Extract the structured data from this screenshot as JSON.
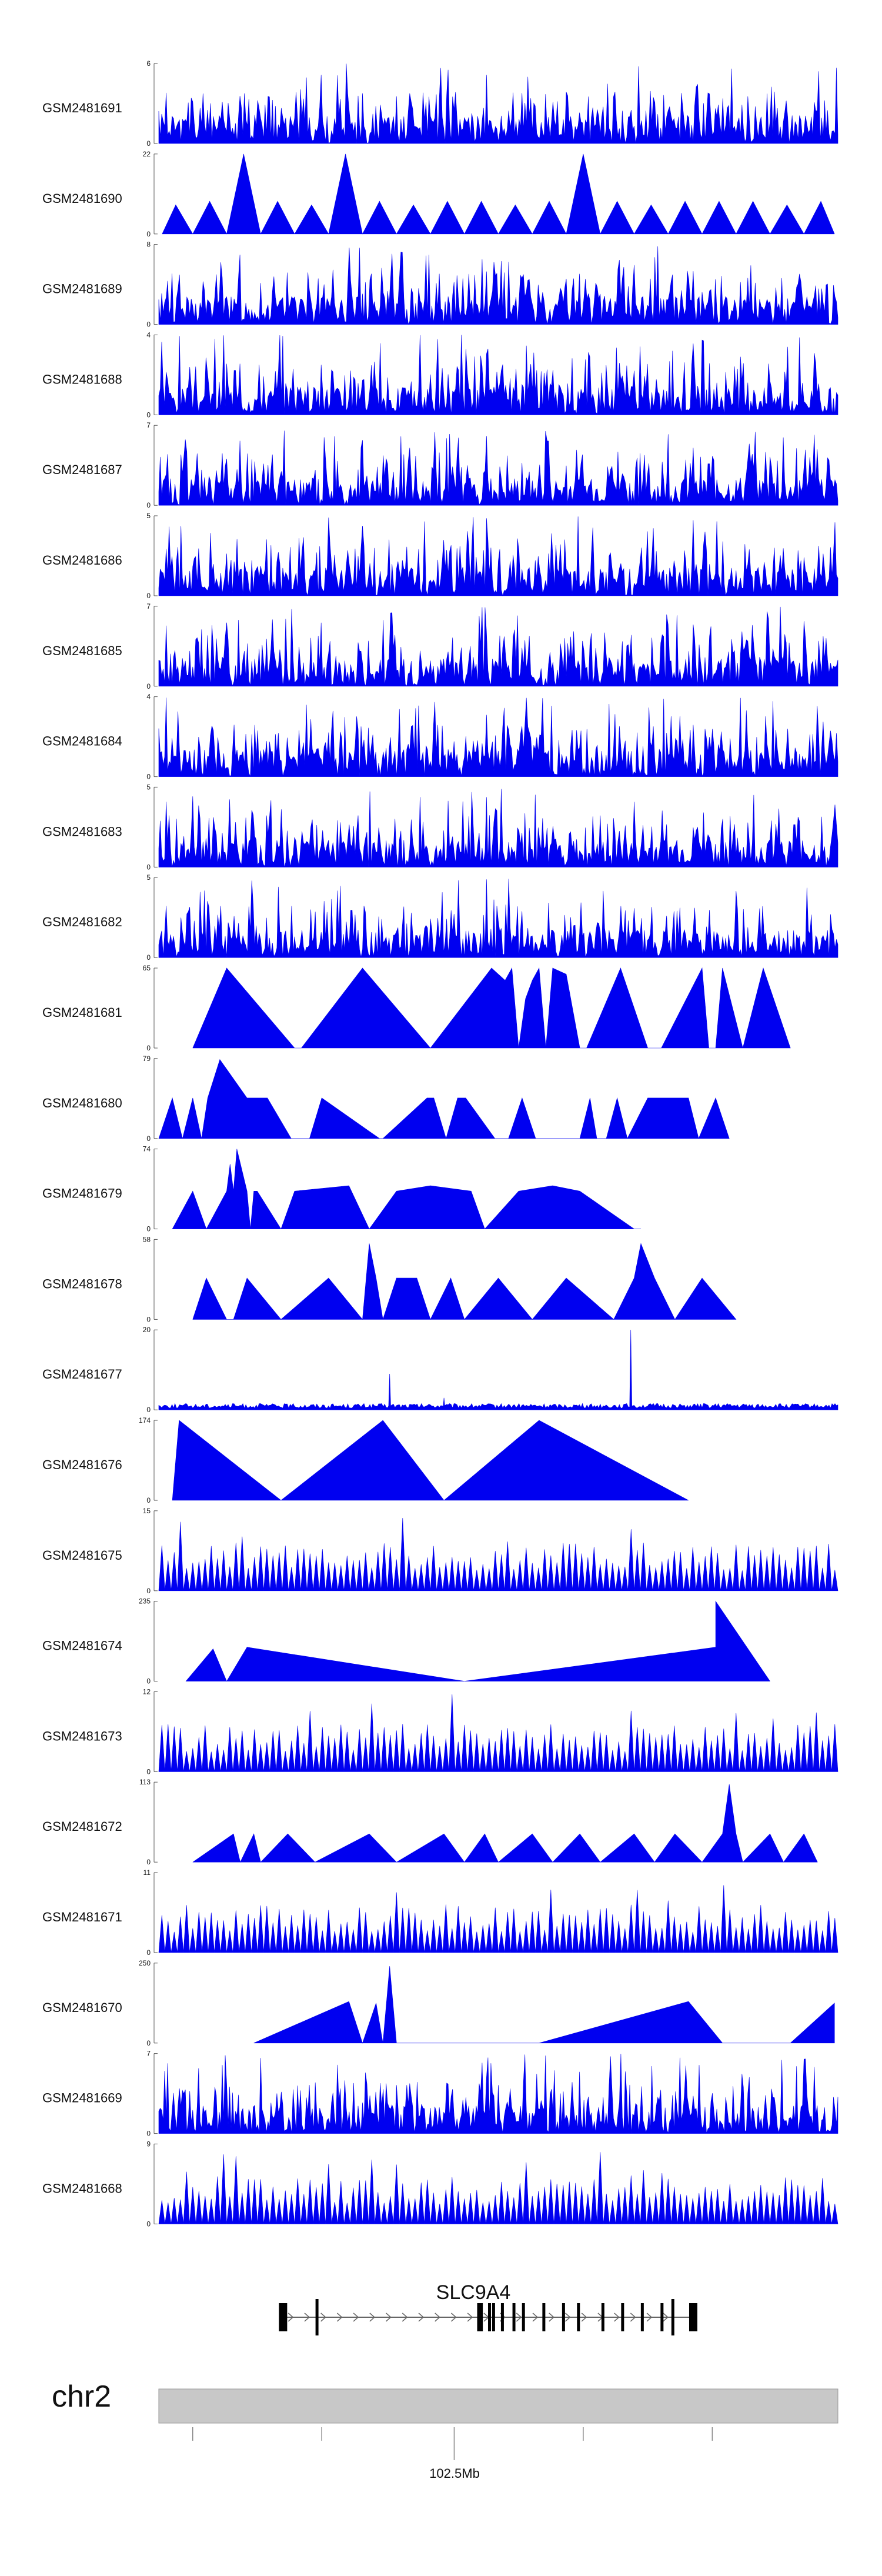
{
  "chart_data": {
    "type": "area",
    "colors": {
      "signal": "#0000f0",
      "ideogram": "#c8c8c8",
      "gene": "#000000",
      "intron": "#666666"
    },
    "tracks": [
      {
        "name": "GSM2481691",
        "ymin": 0,
        "ymax": 6,
        "style": "spiky",
        "seed": 11
      },
      {
        "name": "GSM2481690",
        "ymin": 0,
        "ymax": 22,
        "style": "regular",
        "seed": 12,
        "xvals": [
          0.005,
          0.025,
          0.05,
          0.075,
          0.1,
          0.125,
          0.15,
          0.175,
          0.2,
          0.225,
          0.25,
          0.275,
          0.3,
          0.325,
          0.35,
          0.375,
          0.4,
          0.425,
          0.45,
          0.475,
          0.5,
          0.525,
          0.55,
          0.575,
          0.6,
          0.625,
          0.65,
          0.675,
          0.7,
          0.725,
          0.75,
          0.775,
          0.8,
          0.825,
          0.85,
          0.875,
          0.9,
          0.925,
          0.95,
          0.975,
          0.995
        ],
        "yvals": [
          0,
          8,
          0,
          9,
          0,
          22,
          0,
          9,
          0,
          8,
          0,
          22,
          0,
          9,
          0,
          8,
          0,
          9,
          0,
          9,
          0,
          8,
          0,
          9,
          0,
          22,
          0,
          9,
          0,
          8,
          0,
          9,
          0,
          9,
          0,
          9,
          0,
          8,
          0,
          9,
          0
        ]
      },
      {
        "name": "GSM2481689",
        "ymin": 0,
        "ymax": 8,
        "style": "spiky",
        "seed": 13
      },
      {
        "name": "GSM2481688",
        "ymin": 0,
        "ymax": 4,
        "style": "spiky",
        "seed": 14
      },
      {
        "name": "GSM2481687",
        "ymin": 0,
        "ymax": 7,
        "style": "spiky",
        "seed": 15
      },
      {
        "name": "GSM2481686",
        "ymin": 0,
        "ymax": 5,
        "style": "spiky",
        "seed": 16
      },
      {
        "name": "GSM2481685",
        "ymin": 0,
        "ymax": 7,
        "style": "spiky",
        "seed": 17
      },
      {
        "name": "GSM2481684",
        "ymin": 0,
        "ymax": 4,
        "style": "spiky",
        "seed": 18
      },
      {
        "name": "GSM2481683",
        "ymin": 0,
        "ymax": 5,
        "style": "spiky",
        "seed": 19
      },
      {
        "name": "GSM2481682",
        "ymin": 0,
        "ymax": 5,
        "style": "spiky",
        "seed": 20
      },
      {
        "name": "GSM2481681",
        "ymin": 0,
        "ymax": 65,
        "style": "polyline",
        "seed": 21,
        "xvals": [
          0.05,
          0.1,
          0.2,
          0.21,
          0.3,
          0.4,
          0.49,
          0.5,
          0.51,
          0.52,
          0.53,
          0.54,
          0.55,
          0.56,
          0.57,
          0.58,
          0.6,
          0.62,
          0.63,
          0.68,
          0.72,
          0.74,
          0.8,
          0.81,
          0.82,
          0.83,
          0.86,
          0.89,
          0.93
        ],
        "yvals": [
          0,
          65,
          0,
          0,
          65,
          0,
          65,
          60,
          55,
          65,
          0,
          40,
          55,
          65,
          0,
          65,
          60,
          0,
          0,
          65,
          0,
          0,
          65,
          0,
          0,
          65,
          0,
          65,
          0
        ]
      },
      {
        "name": "GSM2481680",
        "ymin": 0,
        "ymax": 79,
        "style": "polyline",
        "seed": 22,
        "xvals": [
          0,
          0.02,
          0.035,
          0.05,
          0.063,
          0.072,
          0.09,
          0.13,
          0.16,
          0.195,
          0.222,
          0.24,
          0.325,
          0.33,
          0.395,
          0.405,
          0.423,
          0.44,
          0.452,
          0.495,
          0.515,
          0.535,
          0.555,
          0.62,
          0.635,
          0.645,
          0.659,
          0.675,
          0.69,
          0.72,
          0.745,
          0.755,
          0.78,
          0.795,
          0.82,
          0.84
        ],
        "yvals": [
          0,
          40,
          0,
          40,
          0,
          40,
          78,
          40,
          40,
          0,
          0,
          40,
          0,
          0,
          40,
          40,
          0,
          40,
          40,
          0,
          0,
          40,
          0,
          0,
          40,
          0,
          0,
          40,
          0,
          40,
          40,
          40,
          40,
          0,
          40,
          0
        ]
      },
      {
        "name": "GSM2481679",
        "ymin": 0,
        "ymax": 74,
        "style": "polyline",
        "seed": 23,
        "xvals": [
          0.02,
          0.05,
          0.07,
          0.1,
          0.105,
          0.11,
          0.115,
          0.13,
          0.135,
          0.14,
          0.145,
          0.18,
          0.2,
          0.28,
          0.31,
          0.35,
          0.4,
          0.46,
          0.48,
          0.53,
          0.58,
          0.62,
          0.7,
          0.71
        ],
        "yvals": [
          0,
          35,
          0,
          35,
          60,
          35,
          74,
          35,
          0,
          35,
          35,
          0,
          35,
          40,
          0,
          35,
          40,
          35,
          0,
          35,
          40,
          35,
          0,
          0
        ]
      },
      {
        "name": "GSM2481678",
        "ymin": 0,
        "ymax": 58,
        "style": "polyline",
        "seed": 24,
        "xvals": [
          0.05,
          0.07,
          0.1,
          0.11,
          0.13,
          0.18,
          0.25,
          0.3,
          0.31,
          0.32,
          0.33,
          0.35,
          0.38,
          0.4,
          0.43,
          0.45,
          0.5,
          0.55,
          0.6,
          0.67,
          0.7,
          0.71,
          0.73,
          0.76,
          0.8,
          0.85
        ],
        "yvals": [
          0,
          30,
          0,
          0,
          30,
          0,
          30,
          0,
          55,
          30,
          0,
          30,
          30,
          0,
          30,
          0,
          30,
          0,
          30,
          0,
          30,
          55,
          30,
          0,
          30,
          0
        ]
      },
      {
        "name": "GSM2481677",
        "ymin": 0,
        "ymax": 20,
        "style": "lowspike",
        "seed": 25,
        "spikes": [
          [
            0.34,
            9
          ],
          [
            0.695,
            20
          ],
          [
            0.42,
            3
          ]
        ]
      },
      {
        "name": "GSM2481676",
        "ymin": 0,
        "ymax": 174,
        "style": "polyline",
        "seed": 26,
        "xvals": [
          0.02,
          0.03,
          0.18,
          0.33,
          0.42,
          0.56,
          0.78
        ],
        "yvals": [
          0,
          174,
          0,
          174,
          0,
          174,
          0
        ]
      },
      {
        "name": "GSM2481675",
        "ymin": 0,
        "ymax": 15,
        "style": "regular",
        "seed": 27
      },
      {
        "name": "GSM2481674",
        "ymin": 0,
        "ymax": 235,
        "style": "polyline",
        "seed": 28,
        "xvals": [
          0.04,
          0.08,
          0.1,
          0.13,
          0.45,
          0.82,
          0.82,
          0.9
        ],
        "yvals": [
          0,
          95,
          0,
          100,
          0,
          100,
          235,
          0
        ]
      },
      {
        "name": "GSM2481673",
        "ymin": 0,
        "ymax": 12,
        "style": "regular",
        "seed": 29
      },
      {
        "name": "GSM2481672",
        "ymin": 0,
        "ymax": 113,
        "style": "polyline",
        "seed": 30,
        "xvals": [
          0.05,
          0.11,
          0.12,
          0.14,
          0.15,
          0.19,
          0.23,
          0.31,
          0.35,
          0.42,
          0.45,
          0.48,
          0.5,
          0.55,
          0.58,
          0.62,
          0.65,
          0.7,
          0.73,
          0.76,
          0.8,
          0.83,
          0.84,
          0.85,
          0.86,
          0.9,
          0.92,
          0.95,
          0.97
        ],
        "yvals": [
          0,
          40,
          0,
          40,
          0,
          40,
          0,
          40,
          0,
          40,
          0,
          40,
          0,
          40,
          0,
          40,
          0,
          40,
          0,
          40,
          0,
          40,
          110,
          40,
          0,
          40,
          0,
          40,
          0
        ]
      },
      {
        "name": "GSM2481671",
        "ymin": 0,
        "ymax": 11,
        "style": "regular",
        "seed": 31
      },
      {
        "name": "GSM2481670",
        "ymin": 0,
        "ymax": 250,
        "style": "polyline",
        "seed": 32,
        "xvals": [
          0.14,
          0.28,
          0.3,
          0.32,
          0.33,
          0.34,
          0.35,
          0.56,
          0.78,
          0.83,
          0.93,
          0.995
        ],
        "yvals": [
          0,
          130,
          0,
          125,
          0,
          240,
          0,
          0,
          130,
          0,
          0,
          125
        ]
      },
      {
        "name": "GSM2481669",
        "ymin": 0,
        "ymax": 7,
        "style": "spiky",
        "seed": 33
      },
      {
        "name": "GSM2481668",
        "ymin": 0,
        "ymax": 9,
        "style": "regular",
        "seed": 34
      }
    ],
    "gene": {
      "name": "SLC9A4",
      "exons": [
        0.183,
        0.233,
        0.471,
        0.475,
        0.487,
        0.493,
        0.506,
        0.523,
        0.537,
        0.567,
        0.596,
        0.618,
        0.654,
        0.683,
        0.712,
        0.741,
        0.757,
        0.787
      ]
    },
    "ideogram": {
      "chromosome": "chr2",
      "position_label": "102.5Mb",
      "ticks": [
        0.05,
        0.24,
        0.435,
        0.625,
        0.815
      ],
      "major_tick": 0.435
    }
  }
}
